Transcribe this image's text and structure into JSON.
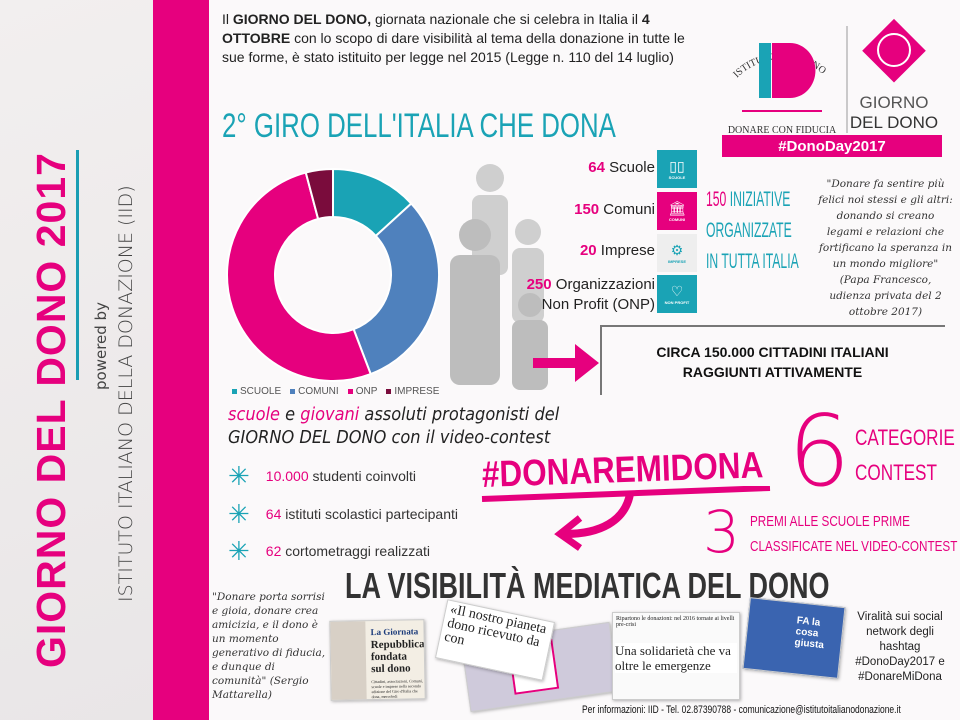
{
  "sidebar": {
    "title": "GIORNO DEL DONO 2017",
    "powered_by": "powered by",
    "institute": "ISTITUTO ITALIANO DELLA DONAZIONE (IID)"
  },
  "intro": {
    "p1": "Il ",
    "b1": "GIORNO DEL DONO,",
    "p2": " giornata nazionale che si celebra in Italia il ",
    "b2": "4 OTTOBRE",
    "p3": " con lo scopo di dare visibilità al tema della donazione in tutte le sue forme, è stato istituito per legge nel 2015 (Legge n. 110 del 14 luglio)"
  },
  "logo": {
    "arc_text": "ISTITUTO ITALIANO DONAZIONE",
    "letters": "ID",
    "tagline": "DONARE CON FIDUCIA",
    "giorno": "GIORNO",
    "del_dono": "DEL DONO",
    "hashtag": "#DonoDay2017"
  },
  "giro_title": "2° GIRO DELL'ITALIA CHE DONA",
  "chart_data": {
    "type": "pie",
    "donut": true,
    "categories": [
      "SCUOLE",
      "COMUNI",
      "ONP",
      "IMPRESE"
    ],
    "values": [
      64,
      150,
      250,
      20
    ],
    "colors": [
      "#1aa3b5",
      "#4f81bd",
      "#e6007e",
      "#7a0c3c"
    ],
    "legend": "bottom"
  },
  "stats": [
    {
      "num": "64",
      "label": " Scuole",
      "icon": "book-icon",
      "icon_label": "SCUOLE",
      "color": "#1aa3b5"
    },
    {
      "num": "150",
      "label": " Comuni",
      "icon": "building-icon",
      "icon_label": "COMUNI",
      "color": "#e6007e"
    },
    {
      "num": "20",
      "label": " Imprese",
      "icon": "gears-icon",
      "icon_label": "IMPRESE",
      "color": "#eeeeee"
    },
    {
      "num": "250",
      "label": " Organizzazioni",
      "label2": "Non Profit (ONP)",
      "icon": "heart-icon",
      "icon_label": "NON PROFIT",
      "color": "#1aa3b5"
    }
  ],
  "icon_brand": "DONODAY",
  "initiatives": {
    "num": "150",
    "l1": " INIZIATIVE",
    "l2": "ORGANIZZATE",
    "l3": "IN TUTTA ITALIA"
  },
  "quote_pope": "\"Donare fa sentire più felici noi stessi e gli altri: donando si creano legami e relazioni che fortificano la speranza in un mondo migliore\" (Papa Francesco, udienza privata del 2 ottobre 2017)",
  "citizens": {
    "l1": "CIRCA 150.000 CITTADINI ITALIANI",
    "l2": "RAGGIUNTI ATTIVAMENTE"
  },
  "subtitle": {
    "a": "scuole",
    "b": " e ",
    "c": "giovani",
    "d": " assoluti protagonisti del",
    "e": "GIORNO DEL DONO con il video-contest"
  },
  "bullets": [
    {
      "num": "10.000",
      "text": " studenti coinvolti"
    },
    {
      "num": "64",
      "text": " istituti scolastici partecipanti"
    },
    {
      "num": "62",
      "text": " cortometraggi realizzati"
    }
  ],
  "hashtag_contest": "#DONAREMIDONA",
  "categories": {
    "num": "6",
    "l1": "CATEGORIE",
    "l2": "CONTEST"
  },
  "prizes": {
    "num": "3",
    "l1": "PREMI ALLE SCUOLE PRIME",
    "l2": "CLASSIFICATE NEL VIDEO-CONTEST"
  },
  "visibility_title": "LA VISIBILITÀ MEDIATICA DEL DONO",
  "quote_mattarella": "\"Donare porta sorrisi e gioia, donare crea amicizia, e il dono è un momento generativo di fiducia, e dunque di comunità\" (Sergio Mattarella)",
  "media": {
    "n1_head": "La Giornata",
    "n1_title": "Repubblica fondata sul dono",
    "n1_body": "Cittadini, associazioni, Comuni, scuole e imprese nella seconda edizione del Giro d'Italia che dona, mercoledì",
    "n2_title": "«Il nostro pianeta dono ricevuto da con",
    "n3_head": "Ripartono le donazioni: nel 2016 tornate ai livelli pre-crisi",
    "n3_title": "Una solidarietà che va oltre le emergenze",
    "tv_text": "FA la cosa giusta"
  },
  "virality": "Viralità sui social network degli hashtag #DonoDay2017 e #DonareMiDona",
  "footer": "Per informazioni: IID - Tel. 02.87390788 - comunicazione@istitutoitalianodonazione.it",
  "colors": {
    "pink": "#e6007e",
    "teal": "#1aa3b5",
    "blue": "#4f81bd"
  }
}
